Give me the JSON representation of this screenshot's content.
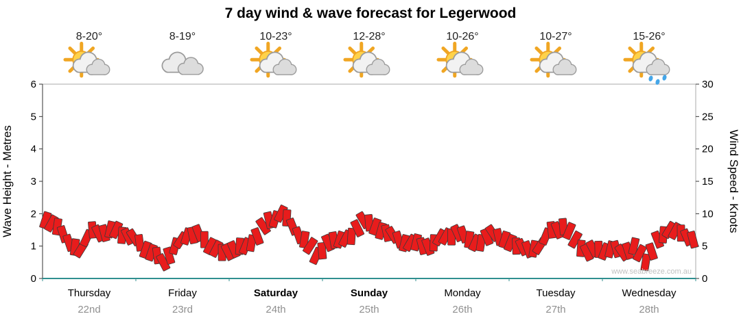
{
  "watermark": "www.seabreeze.com.au",
  "days": [
    {
      "name": "Thursday",
      "date": "22nd",
      "temp": "8-20°",
      "icon": "sun-cloud",
      "bold": false
    },
    {
      "name": "Friday",
      "date": "23rd",
      "temp": "8-19°",
      "icon": "cloud",
      "bold": false
    },
    {
      "name": "Saturday",
      "date": "24th",
      "temp": "10-23°",
      "icon": "sun-cloud",
      "bold": true
    },
    {
      "name": "Sunday",
      "date": "25th",
      "temp": "12-28°",
      "icon": "sun-cloud",
      "bold": true
    },
    {
      "name": "Monday",
      "date": "26th",
      "temp": "10-26°",
      "icon": "sun-cloud",
      "bold": false
    },
    {
      "name": "Tuesday",
      "date": "27th",
      "temp": "10-27°",
      "icon": "sun-cloud",
      "bold": false
    },
    {
      "name": "Wednesday",
      "date": "28th",
      "temp": "15-26°",
      "icon": "sun-cloud-rain",
      "bold": false
    }
  ],
  "chart_data": {
    "type": "scatter",
    "title": "7 day wind & wave forecast for Legerwood",
    "xlabel": "",
    "left_axis": {
      "label": "Wave Height - Metres",
      "ticks": [
        0,
        1,
        2,
        3,
        4,
        5,
        6
      ],
      "ylim": [
        0,
        6
      ]
    },
    "right_axis": {
      "label": "Wind Speed - Knots",
      "ticks": [
        0,
        5,
        10,
        15,
        20,
        25,
        30
      ],
      "ylim": [
        0,
        30
      ]
    },
    "categories": [
      "Thursday",
      "Friday",
      "Saturday",
      "Sunday",
      "Monday",
      "Tuesday",
      "Wednesday"
    ],
    "points_per_day": 8,
    "grid": false,
    "legend": "none",
    "series": [
      {
        "name": "Wind Speed (knots)",
        "marker": "red-flag",
        "values": [
          9.0,
          8.0,
          5.5,
          4.5,
          7.5,
          7.0,
          7.5,
          6.5,
          5.5,
          4.0,
          2.5,
          5.0,
          6.5,
          7.0,
          5.0,
          4.0,
          4.5,
          5.0,
          6.5,
          9.0,
          10.0,
          8.0,
          6.0,
          3.5,
          5.5,
          6.0,
          6.5,
          9.0,
          8.0,
          7.0,
          6.0,
          5.5,
          5.0,
          5.5,
          6.5,
          7.0,
          6.0,
          5.5,
          7.0,
          6.0,
          5.0,
          4.5,
          5.0,
          7.5,
          8.0,
          6.0,
          4.0,
          4.5,
          4.5,
          4.0,
          5.0,
          2.5,
          6.0,
          7.5,
          7.0,
          6.0
        ]
      }
    ],
    "colors": {
      "flag_fill": "#e81c1c",
      "flag_stroke": "#3a3a3a",
      "baseline": "#2f8f8f",
      "axis": "#333333",
      "frame": "#aaaaaa",
      "date_text": "#909090",
      "watermark_text": "#c0c0c0",
      "sun": "#ffd24a",
      "sun_stroke": "#f0a623",
      "rain_drop": "#45a6e8"
    }
  }
}
